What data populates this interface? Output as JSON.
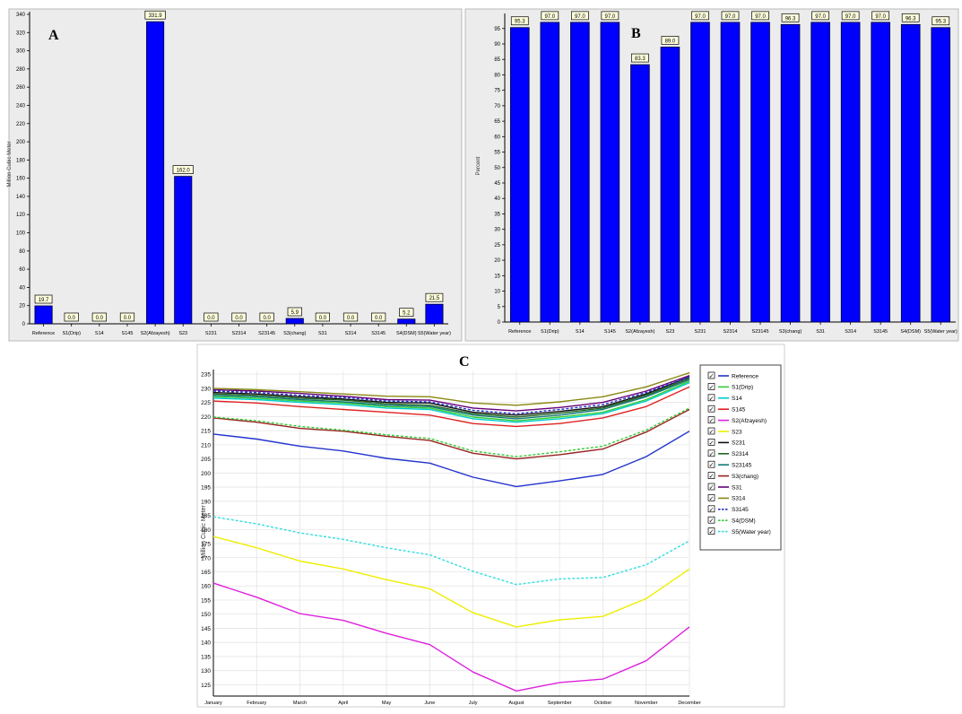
{
  "chart_data": [
    {
      "panel": "A",
      "type": "bar",
      "ylabel": "Million Cubic Meter",
      "xlabel": "",
      "ylim": [
        0,
        340
      ],
      "yticks": [
        0,
        20,
        40,
        60,
        80,
        100,
        120,
        140,
        160,
        180,
        200,
        220,
        240,
        260,
        280,
        300,
        320,
        340
      ],
      "grid": false,
      "categories": [
        "Reference",
        "S1(Drip)",
        "S14",
        "S145",
        "S2(Afzayesh)",
        "S23",
        "S231",
        "S2314",
        "S23145",
        "S3(chang)",
        "S31",
        "S314",
        "S3145",
        "S4(DSM)",
        "S5(Water year)"
      ],
      "values": [
        19.7,
        0.0,
        0.0,
        0.0,
        331.9,
        162.0,
        0.0,
        0.0,
        0.0,
        5.9,
        0.0,
        0.0,
        0.0,
        5.2,
        21.5
      ],
      "labels": [
        "19.7",
        "0.0",
        "0.0",
        "0.0",
        "331.9",
        "162.0",
        "0.0",
        "0.0",
        "0.0",
        "5.9",
        "0.0",
        "0.0",
        "0.0",
        "5.2",
        "21.5"
      ],
      "color": "#0000ff"
    },
    {
      "panel": "B",
      "type": "bar",
      "ylabel": "Percent",
      "xlabel": "",
      "ylim": [
        0,
        99
      ],
      "yticks": [
        0,
        5,
        10,
        15,
        20,
        25,
        30,
        35,
        40,
        45,
        50,
        55,
        60,
        65,
        70,
        75,
        80,
        85,
        90,
        95
      ],
      "grid": false,
      "categories": [
        "Reference",
        "S1(Drip)",
        "S14",
        "S145",
        "S2(Afzayesh)",
        "S23",
        "S231",
        "S2314",
        "S23145",
        "S3(chang)",
        "S31",
        "S314",
        "S3145",
        "S4(DSM)",
        "S5(Water year)"
      ],
      "values": [
        95.3,
        97.0,
        97.0,
        97.0,
        83.3,
        89.0,
        97.0,
        97.0,
        97.0,
        96.3,
        97.0,
        97.0,
        97.0,
        96.3,
        95.3
      ],
      "labels": [
        "95.3",
        "97.0",
        "97.0",
        "97.0",
        "83.3",
        "89.0",
        "97.0",
        "97.0",
        "97.0",
        "96.3",
        "97.0",
        "97.0",
        "97.0",
        "96.3",
        "95.3"
      ],
      "color": "#0000ff"
    },
    {
      "panel": "C",
      "type": "line",
      "ylabel": "Million Cubic Meter",
      "xlabel": "",
      "ylim": [
        121,
        236
      ],
      "yticks": [
        125,
        130,
        135,
        140,
        145,
        150,
        155,
        160,
        165,
        170,
        175,
        180,
        185,
        190,
        195,
        200,
        205,
        210,
        215,
        220,
        225,
        230,
        235
      ],
      "grid": true,
      "legend": "right",
      "x": [
        "January",
        "February",
        "March",
        "April",
        "May",
        "June",
        "July",
        "August",
        "September",
        "October",
        "November",
        "December"
      ],
      "series": [
        {
          "name": "Reference",
          "color": "#2233cc",
          "dash": false,
          "values": [
            213.8,
            212.0,
            209.5,
            207.8,
            205.2,
            203.5,
            198.5,
            195.2,
            197.2,
            199.5,
            205.8,
            214.8
          ]
        },
        {
          "name": "S1(Drip)",
          "color": "#33cc33",
          "dash": false,
          "values": [
            227.0,
            226.5,
            225.5,
            224.8,
            223.5,
            223.0,
            219.8,
            218.5,
            219.8,
            221.5,
            226.0,
            232.5
          ]
        },
        {
          "name": "S14",
          "color": "#00cccc",
          "dash": false,
          "values": [
            226.5,
            226.0,
            225.0,
            224.2,
            223.0,
            222.5,
            219.2,
            218.0,
            219.2,
            221.0,
            225.5,
            232.0
          ]
        },
        {
          "name": "S145",
          "color": "#dd2222",
          "dash": false,
          "values": [
            225.5,
            224.8,
            223.5,
            222.5,
            221.5,
            220.5,
            217.5,
            216.5,
            217.5,
            219.5,
            223.5,
            230.5
          ]
        },
        {
          "name": "S2(Afzayesh)",
          "color": "#dd22dd",
          "dash": false,
          "values": [
            161.0,
            156.0,
            150.2,
            147.8,
            143.2,
            139.2,
            129.5,
            122.8,
            125.8,
            127.0,
            133.5,
            145.5
          ]
        },
        {
          "name": "S23",
          "color": "#eeee00",
          "dash": false,
          "values": [
            177.5,
            173.5,
            168.8,
            166.0,
            162.2,
            159.0,
            150.5,
            145.5,
            148.0,
            149.2,
            155.5,
            166.0
          ]
        },
        {
          "name": "S231",
          "color": "#111111",
          "dash": false,
          "values": [
            228.5,
            228.0,
            227.0,
            226.2,
            225.0,
            224.8,
            221.5,
            220.5,
            221.8,
            223.5,
            228.0,
            234.0
          ]
        },
        {
          "name": "S2314",
          "color": "#226622",
          "dash": false,
          "values": [
            228.0,
            227.5,
            226.5,
            225.8,
            224.5,
            224.0,
            221.0,
            219.8,
            221.2,
            223.0,
            227.5,
            233.5
          ]
        },
        {
          "name": "S23145",
          "color": "#117777",
          "dash": false,
          "values": [
            227.5,
            227.0,
            226.0,
            225.2,
            224.0,
            223.5,
            220.5,
            219.2,
            220.5,
            222.5,
            227.0,
            233.0
          ]
        },
        {
          "name": "S3(chang)",
          "color": "#992222",
          "dash": false,
          "values": [
            219.5,
            218.0,
            215.8,
            214.8,
            213.0,
            211.5,
            207.0,
            205.0,
            206.5,
            208.5,
            214.5,
            222.5
          ]
        },
        {
          "name": "S31",
          "color": "#660077",
          "dash": false,
          "values": [
            229.5,
            229.0,
            228.2,
            227.2,
            226.0,
            225.8,
            223.0,
            222.0,
            223.2,
            225.0,
            229.0,
            234.5
          ]
        },
        {
          "name": "S314",
          "color": "#888811",
          "dash": false,
          "values": [
            230.0,
            229.5,
            228.8,
            228.0,
            227.2,
            227.0,
            224.8,
            224.0,
            225.2,
            227.0,
            230.5,
            235.5
          ]
        },
        {
          "name": "S3145",
          "color": "#2233cc",
          "dash": true,
          "values": [
            229.0,
            228.5,
            227.5,
            226.8,
            225.5,
            225.2,
            222.2,
            221.0,
            222.5,
            224.2,
            228.5,
            234.0
          ]
        },
        {
          "name": "S4(DSM)",
          "color": "#33cc33",
          "dash": true,
          "values": [
            219.8,
            218.5,
            216.5,
            215.2,
            213.5,
            212.2,
            207.8,
            205.8,
            207.5,
            209.5,
            215.2,
            223.0
          ]
        },
        {
          "name": "S5(Water year)",
          "color": "#33dddd",
          "dash": true,
          "values": [
            184.5,
            182.0,
            178.8,
            176.5,
            173.5,
            171.0,
            165.2,
            160.5,
            162.5,
            163.0,
            167.5,
            176.0
          ]
        }
      ]
    }
  ],
  "panel_letters": {
    "a": "A",
    "b": "B",
    "c": "C"
  },
  "legend_check_glyph": "✓"
}
